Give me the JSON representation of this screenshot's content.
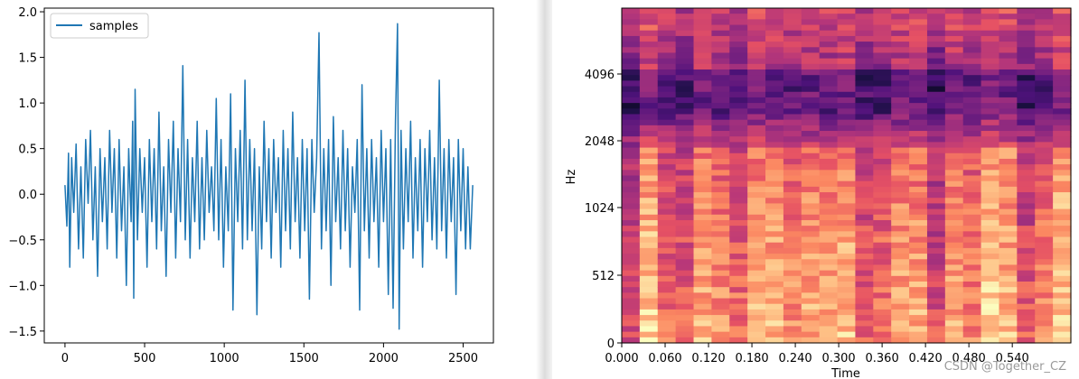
{
  "chart_data": [
    {
      "type": "line",
      "x_range": [
        0,
        2560
      ],
      "xlim": [
        -130,
        2690
      ],
      "ylim": [
        -1.63,
        2.04
      ],
      "xticks": [
        "0",
        "500",
        "1000",
        "1500",
        "2000",
        "2500"
      ],
      "yticks": [
        "−1.5",
        "−1.0",
        "−0.5",
        "0.0",
        "0.5",
        "1.0",
        "1.5",
        "2.0"
      ],
      "legend": "top-left",
      "series": [
        {
          "name": "samples",
          "color": "#1f77b4",
          "points": [
            [
              0,
              0.1
            ],
            [
              12,
              -0.35
            ],
            [
              22,
              0.45
            ],
            [
              30,
              -0.8
            ],
            [
              42,
              0.4
            ],
            [
              55,
              -0.2
            ],
            [
              70,
              0.55
            ],
            [
              85,
              -0.6
            ],
            [
              100,
              0.3
            ],
            [
              115,
              -0.7
            ],
            [
              130,
              0.6
            ],
            [
              145,
              -0.1
            ],
            [
              160,
              0.7
            ],
            [
              175,
              -0.5
            ],
            [
              190,
              0.3
            ],
            [
              205,
              -0.9
            ],
            [
              220,
              0.5
            ],
            [
              235,
              -0.3
            ],
            [
              250,
              0.4
            ],
            [
              265,
              -0.6
            ],
            [
              280,
              0.7
            ],
            [
              295,
              -0.2
            ],
            [
              310,
              0.5
            ],
            [
              325,
              -0.7
            ],
            [
              340,
              0.6
            ],
            [
              355,
              -0.4
            ],
            [
              370,
              0.3
            ],
            [
              385,
              -1.0
            ],
            [
              400,
              0.5
            ],
            [
              415,
              -0.3
            ],
            [
              425,
              0.8
            ],
            [
              432,
              -1.14
            ],
            [
              440,
              1.15
            ],
            [
              455,
              -0.5
            ],
            [
              470,
              0.5
            ],
            [
              485,
              -0.2
            ],
            [
              500,
              0.4
            ],
            [
              515,
              -0.8
            ],
            [
              530,
              0.6
            ],
            [
              545,
              -0.3
            ],
            [
              560,
              0.5
            ],
            [
              575,
              -0.6
            ],
            [
              590,
              0.9
            ],
            [
              605,
              -0.4
            ],
            [
              620,
              0.3
            ],
            [
              635,
              -0.9
            ],
            [
              650,
              0.6
            ],
            [
              665,
              -0.2
            ],
            [
              680,
              0.8
            ],
            [
              695,
              -0.7
            ],
            [
              710,
              0.5
            ],
            [
              725,
              -0.3
            ],
            [
              740,
              1.41
            ],
            [
              755,
              -0.5
            ],
            [
              770,
              0.6
            ],
            [
              785,
              -0.7
            ],
            [
              800,
              0.4
            ],
            [
              815,
              -0.3
            ],
            [
              830,
              0.8
            ],
            [
              845,
              -0.6
            ],
            [
              860,
              0.4
            ],
            [
              875,
              -0.5
            ],
            [
              890,
              0.7
            ],
            [
              905,
              -0.2
            ],
            [
              920,
              0.3
            ],
            [
              935,
              -0.4
            ],
            [
              950,
              1.05
            ],
            [
              965,
              -0.5
            ],
            [
              980,
              0.6
            ],
            [
              995,
              -0.8
            ],
            [
              1010,
              0.3
            ],
            [
              1025,
              -0.4
            ],
            [
              1040,
              1.1
            ],
            [
              1055,
              -1.27
            ],
            [
              1070,
              0.5
            ],
            [
              1085,
              -0.3
            ],
            [
              1100,
              0.7
            ],
            [
              1115,
              -0.6
            ],
            [
              1130,
              1.25
            ],
            [
              1145,
              -0.5
            ],
            [
              1160,
              0.6
            ],
            [
              1175,
              -0.4
            ],
            [
              1190,
              0.5
            ],
            [
              1205,
              -1.32
            ],
            [
              1220,
              0.3
            ],
            [
              1235,
              -0.6
            ],
            [
              1250,
              0.8
            ],
            [
              1265,
              -0.3
            ],
            [
              1280,
              0.5
            ],
            [
              1295,
              -0.7
            ],
            [
              1310,
              0.6
            ],
            [
              1325,
              -0.2
            ],
            [
              1340,
              0.4
            ],
            [
              1355,
              -0.8
            ],
            [
              1370,
              0.7
            ],
            [
              1385,
              -0.4
            ],
            [
              1400,
              0.5
            ],
            [
              1415,
              -0.6
            ],
            [
              1430,
              0.9
            ],
            [
              1445,
              -0.3
            ],
            [
              1460,
              0.4
            ],
            [
              1475,
              -0.7
            ],
            [
              1490,
              0.6
            ],
            [
              1505,
              -0.4
            ],
            [
              1520,
              0.5
            ],
            [
              1535,
              -1.15
            ],
            [
              1550,
              0.6
            ],
            [
              1565,
              -0.2
            ],
            [
              1580,
              0.4
            ],
            [
              1595,
              1.77
            ],
            [
              1610,
              -0.6
            ],
            [
              1625,
              0.5
            ],
            [
              1640,
              -0.4
            ],
            [
              1655,
              0.6
            ],
            [
              1670,
              -1.0
            ],
            [
              1685,
              0.85
            ],
            [
              1700,
              -0.3
            ],
            [
              1715,
              0.4
            ],
            [
              1730,
              -0.6
            ],
            [
              1745,
              0.7
            ],
            [
              1760,
              -0.4
            ],
            [
              1775,
              0.5
            ],
            [
              1790,
              -0.8
            ],
            [
              1805,
              0.3
            ],
            [
              1820,
              -0.2
            ],
            [
              1835,
              0.6
            ],
            [
              1850,
              -1.27
            ],
            [
              1865,
              1.2
            ],
            [
              1880,
              -0.4
            ],
            [
              1895,
              0.5
            ],
            [
              1910,
              -0.7
            ],
            [
              1925,
              0.6
            ],
            [
              1940,
              -0.3
            ],
            [
              1955,
              0.4
            ],
            [
              1970,
              -0.8
            ],
            [
              1985,
              0.7
            ],
            [
              2000,
              -0.3
            ],
            [
              2015,
              0.5
            ],
            [
              2030,
              -1.1
            ],
            [
              2045,
              0.6
            ],
            [
              2060,
              -1.25
            ],
            [
              2075,
              0.8
            ],
            [
              2088,
              1.87
            ],
            [
              2098,
              -1.48
            ],
            [
              2110,
              0.7
            ],
            [
              2125,
              -0.6
            ],
            [
              2140,
              0.5
            ],
            [
              2155,
              -0.3
            ],
            [
              2170,
              0.8
            ],
            [
              2185,
              -0.7
            ],
            [
              2200,
              0.4
            ],
            [
              2215,
              -0.4
            ],
            [
              2230,
              0.6
            ],
            [
              2245,
              -0.8
            ],
            [
              2260,
              0.5
            ],
            [
              2275,
              -0.3
            ],
            [
              2290,
              0.7
            ],
            [
              2305,
              -0.5
            ],
            [
              2320,
              0.4
            ],
            [
              2335,
              -0.6
            ],
            [
              2350,
              1.25
            ],
            [
              2365,
              -0.4
            ],
            [
              2380,
              0.5
            ],
            [
              2395,
              -0.7
            ],
            [
              2410,
              0.6
            ],
            [
              2425,
              -0.3
            ],
            [
              2440,
              0.4
            ],
            [
              2455,
              -1.1
            ],
            [
              2470,
              0.6
            ],
            [
              2485,
              -0.4
            ],
            [
              2500,
              0.5
            ],
            [
              2515,
              -0.6
            ],
            [
              2530,
              0.3
            ],
            [
              2545,
              -0.6
            ],
            [
              2560,
              0.1
            ]
          ]
        }
      ]
    },
    {
      "type": "heatmap",
      "xlabel": "Time",
      "ylabel": "Hz",
      "xticks": [
        "0.000",
        "0.060",
        "0.120",
        "0.180",
        "0.240",
        "0.300",
        "0.360",
        "0.420",
        "0.480",
        "0.540"
      ],
      "yticks": [
        "0",
        "512",
        "1024",
        "2048",
        "4096"
      ],
      "colormap": "magma",
      "columns": 25,
      "rows": 60
    }
  ],
  "watermark": "CSDN @Together_CZ"
}
